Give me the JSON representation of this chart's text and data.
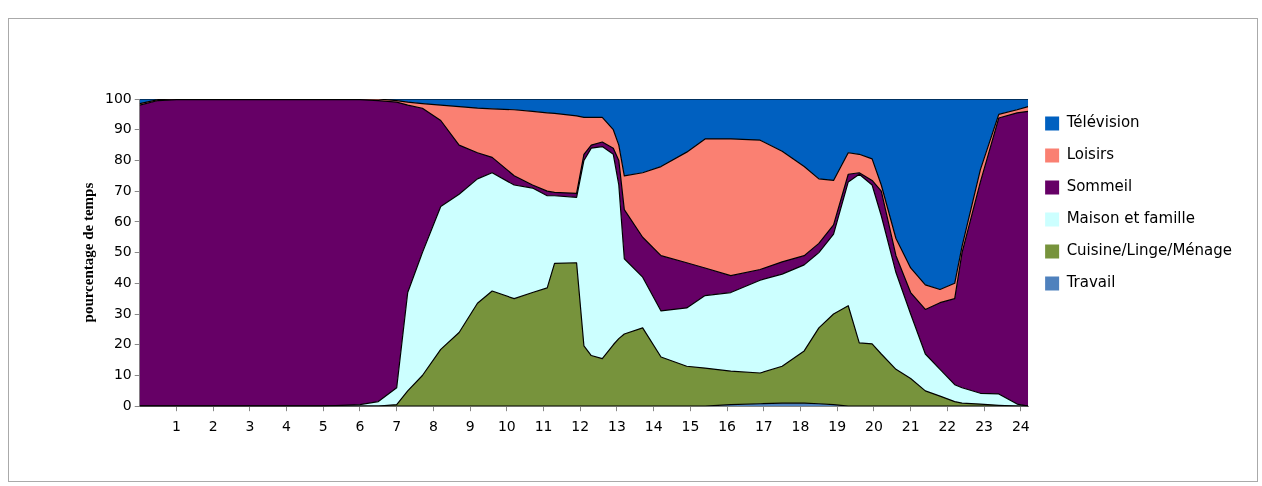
{
  "chart_data": {
    "type": "area",
    "stacked": true,
    "ylabel": "pourcentage de temps",
    "x": [
      0,
      0.5,
      1,
      2,
      3,
      4,
      5,
      6,
      6.5,
      7,
      7.3,
      7.7,
      8.2,
      8.7,
      9.2,
      9.6,
      10.2,
      10.7,
      11.1,
      11.3,
      11.9,
      12.1,
      12.3,
      12.6,
      12.9,
      13.05,
      13.2,
      13.7,
      14.2,
      14.9,
      15.4,
      16.1,
      16.9,
      17.5,
      18.1,
      18.5,
      18.9,
      19.3,
      19.6,
      19.95,
      20.2,
      20.6,
      21.0,
      21.4,
      21.8,
      22.2,
      22.4,
      22.9,
      23.4,
      23.9,
      24.2
    ],
    "xlim": [
      0,
      24.2
    ],
    "xticks": [
      1,
      2,
      3,
      4,
      5,
      6,
      7,
      8,
      9,
      10,
      11,
      12,
      13,
      14,
      15,
      16,
      17,
      18,
      19,
      20,
      21,
      22,
      23,
      24
    ],
    "ylim": [
      0,
      100
    ],
    "yticks": [
      0,
      10,
      20,
      30,
      40,
      50,
      60,
      70,
      80,
      90,
      100
    ],
    "grid": false,
    "legend": "top right",
    "series": [
      {
        "name": "Travail",
        "color": "#4f81bd",
        "values": [
          0,
          0,
          0,
          0,
          0,
          0,
          0,
          0,
          0,
          0,
          0,
          0,
          0,
          0,
          0,
          0,
          0,
          0,
          0,
          0,
          0,
          0,
          0,
          0,
          0,
          0,
          0,
          0,
          0,
          0,
          0,
          0.5,
          0.8,
          1,
          1,
          0.8,
          0.5,
          0,
          0,
          0,
          0,
          0,
          0,
          0,
          0,
          0,
          0,
          0,
          0,
          0,
          0
        ]
      },
      {
        "name": "Cuisine/Linge/Ménage",
        "color": "#77933c",
        "values": [
          0,
          0,
          0,
          0,
          0,
          0,
          0,
          0,
          0,
          0.5,
          5,
          10,
          18.5,
          24,
          33.5,
          37.5,
          35,
          37,
          38.5,
          46.5,
          46.7,
          19.6,
          16.5,
          15.5,
          20,
          22,
          23.5,
          25.5,
          16,
          13,
          12.4,
          10.9,
          10,
          12,
          17,
          24.7,
          29.5,
          32.7,
          20.6,
          20.3,
          17,
          12,
          9,
          5,
          3.3,
          1.5,
          1,
          0.7,
          0.3,
          0,
          0
        ]
      },
      {
        "name": "Maison et famille",
        "color": "#ccffff",
        "values": [
          0,
          0,
          0,
          0,
          0,
          0,
          0,
          0.5,
          1.5,
          5.5,
          32,
          40,
          46.5,
          45,
          40.5,
          38.5,
          37,
          34,
          30,
          22,
          21.3,
          60.4,
          67.5,
          69,
          62,
          50,
          24.5,
          16.5,
          15,
          19,
          23.6,
          25.6,
          30.2,
          30,
          28,
          24.5,
          26,
          40.3,
          54.9,
          51.7,
          45,
          31.5,
          21,
          12,
          8.7,
          5.5,
          5,
          3.5,
          3.7,
          0.7,
          0
        ]
      },
      {
        "name": "Sommeil",
        "color": "#660066",
        "values": [
          98,
          99.5,
          99.8,
          99.8,
          99.8,
          99.8,
          99.8,
          99.3,
          98,
          93,
          61,
          47,
          28,
          16,
          8.5,
          5,
          3,
          1,
          1.5,
          1.1,
          1.3,
          2,
          1,
          1.5,
          2,
          8,
          16,
          13,
          18,
          14.7,
          9,
          5.5,
          3.5,
          4,
          3,
          3,
          3,
          2.5,
          0.5,
          1.5,
          8,
          5.5,
          7,
          14.5,
          21.7,
          28,
          44,
          68.8,
          89.8,
          94.8,
          96
        ]
      },
      {
        "name": "Loisirs",
        "color": "#fa8072",
        "values": [
          0.5,
          0.3,
          0.2,
          0.2,
          0.2,
          0.2,
          0.2,
          0.2,
          0.5,
          0.5,
          1,
          1.5,
          5,
          12.5,
          14.5,
          15.8,
          21.5,
          24,
          25.5,
          25.7,
          25.2,
          12,
          9,
          8,
          6,
          5,
          11,
          21,
          29,
          36,
          42,
          44.5,
          42.1,
          36,
          29,
          21,
          14.5,
          7,
          6,
          7,
          2,
          5.6,
          8,
          8,
          4.3,
          5,
          2,
          4,
          1.2,
          1,
          1.5
        ]
      },
      {
        "name": "Télévision",
        "color": "#0060c0",
        "values": [
          1.5,
          0.2,
          0,
          0,
          0,
          0,
          0,
          0,
          0,
          0.5,
          1,
          1.5,
          2,
          2.5,
          3,
          3.2,
          3.5,
          4,
          4.5,
          4.7,
          5.5,
          6,
          6,
          6,
          10,
          15,
          25,
          24,
          22,
          17.3,
          13,
          13,
          13.4,
          17,
          22,
          26,
          26.5,
          17.5,
          18,
          19.5,
          28,
          45.4,
          55,
          60.5,
          62,
          60,
          48,
          23,
          5,
          3.5,
          2.5
        ]
      }
    ]
  }
}
